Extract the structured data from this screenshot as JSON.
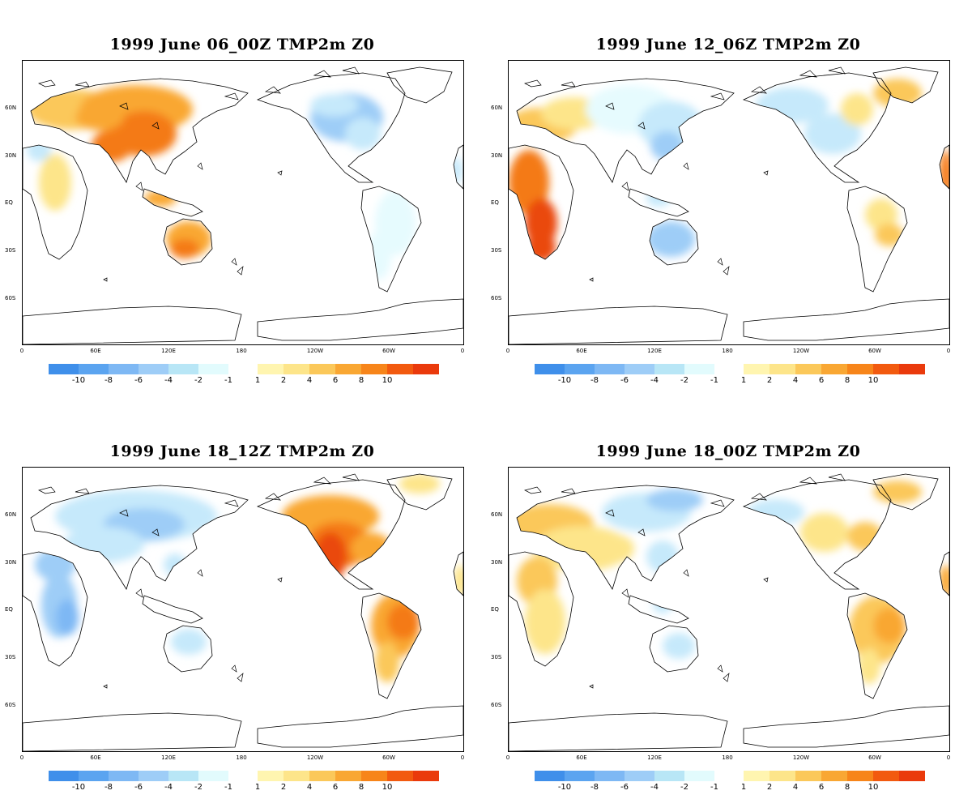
{
  "panels": [
    {
      "title": "1999 June 06_00Z TMP2m Z0",
      "pattern": "p1"
    },
    {
      "title": "1999 June 12_06Z TMP2m Z0",
      "pattern": "p2"
    },
    {
      "title": "1999 June 18_12Z TMP2m Z0",
      "pattern": "p3"
    },
    {
      "title": "1999 June 18_00Z TMP2m Z0",
      "pattern": "p4"
    }
  ],
  "lat_ticks": [
    "60N",
    "30N",
    "EQ",
    "30S",
    "60S"
  ],
  "lon_ticks": [
    "0",
    "60E",
    "120E",
    "180",
    "120W",
    "60W",
    "0"
  ],
  "colorbar": {
    "cold_colors": [
      "#3f8fea",
      "#5ba4f0",
      "#7eb8f4",
      "#9ecdf7",
      "#b8e6f6",
      "#e2fbfd"
    ],
    "cold_labels": [
      "-10",
      "-8",
      "-6",
      "-4",
      "-2",
      "-1"
    ],
    "warm_colors": [
      "#fff5b0",
      "#fde58a",
      "#fbc85a",
      "#f9a733",
      "#f7851a",
      "#f25a0f",
      "#ea3a0c"
    ],
    "warm_labels": [
      "1",
      "2",
      "4",
      "6",
      "8",
      "10"
    ]
  },
  "anomaly_colors": {
    "c3": "#7eb8f4",
    "c2": "#9ecdf7",
    "c1": "#c6e9fb",
    "c0": "#e6fbfe",
    "w1": "#fde58a",
    "w2": "#fbc85a",
    "w3": "#f9a733",
    "w4": "#f47a18",
    "w5": "#ea4a0c"
  }
}
